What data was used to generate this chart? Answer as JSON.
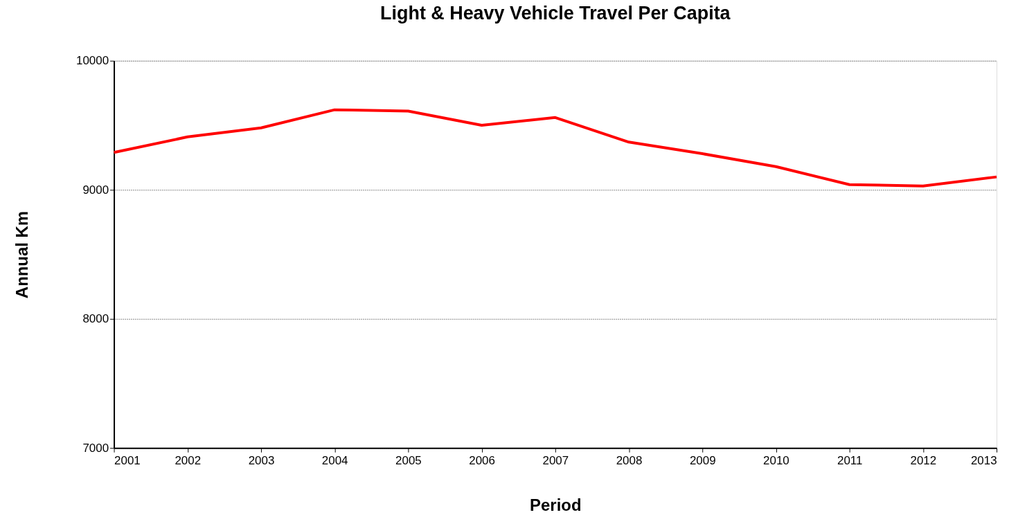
{
  "chart_data": {
    "type": "line",
    "title": "Light & Heavy Vehicle Travel Per Capita",
    "xlabel": "Period",
    "ylabel": "Annual Km",
    "x": [
      2001,
      2002,
      2003,
      2004,
      2005,
      2006,
      2007,
      2008,
      2009,
      2010,
      2011,
      2012,
      2013
    ],
    "series": [
      {
        "color": "#ff0000",
        "values": [
          9290,
          9410,
          9480,
          9620,
          9610,
          9500,
          9560,
          9370,
          9280,
          9180,
          9040,
          9030,
          9100
        ]
      }
    ],
    "xlim": [
      2001,
      2013
    ],
    "xticks": [
      2001,
      2002,
      2003,
      2004,
      2005,
      2006,
      2007,
      2008,
      2009,
      2010,
      2011,
      2012,
      2013
    ],
    "ylim": [
      7000,
      10000
    ],
    "yticks": [
      7000,
      8000,
      9000,
      10000
    ],
    "grid": "y",
    "marker": "none",
    "line_style": "solid"
  }
}
